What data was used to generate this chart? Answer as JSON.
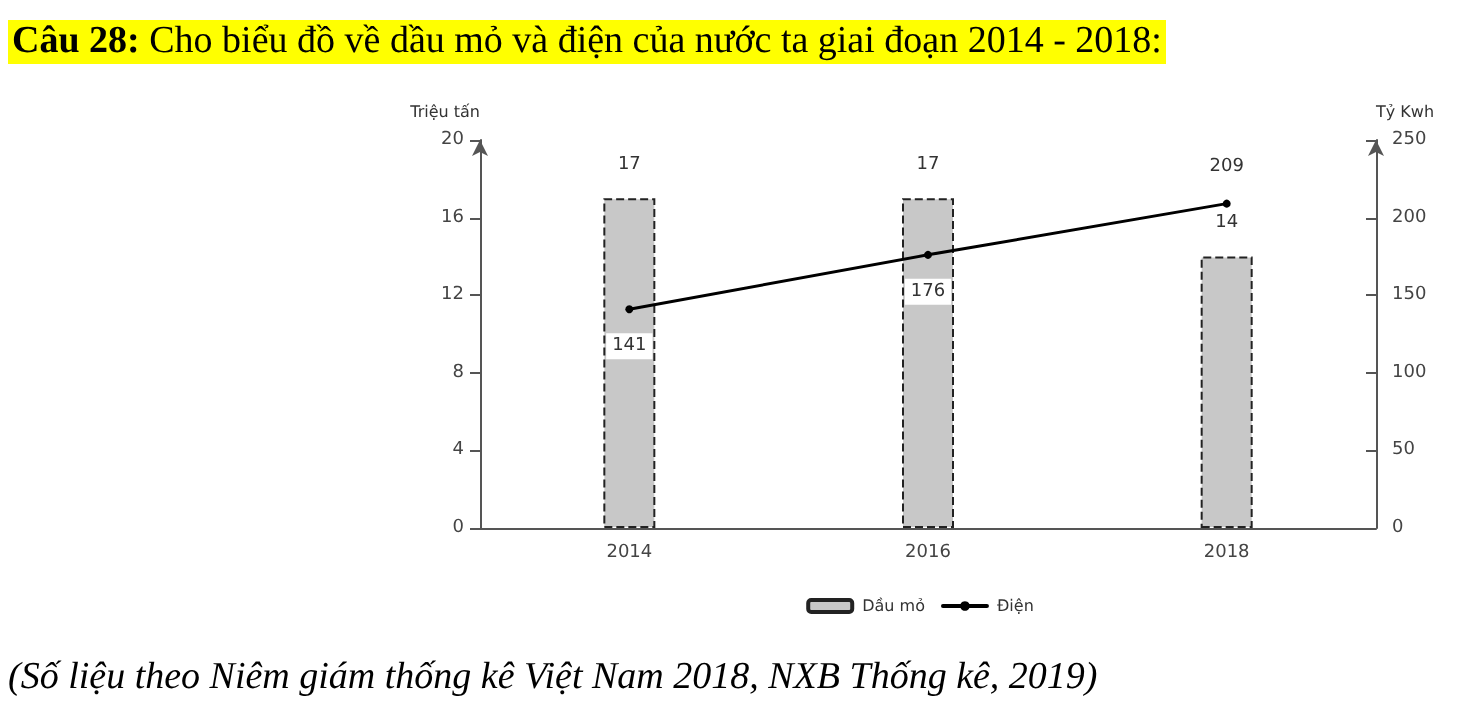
{
  "chart_data": {
    "type": "bar",
    "title": "Câu 28: Cho biểu đồ về dầu mỏ và điện của nước ta giai đoạn 2014 - 2018:",
    "categories": [
      "2014",
      "2016",
      "2018"
    ],
    "series": [
      {
        "name": "Dầu mỏ",
        "color": "#c8c8c8",
        "values": [
          17,
          17,
          14
        ]
      },
      {
        "name": "Điện",
        "type": "line",
        "axis": "y2",
        "color": "#000000",
        "values": [
          141,
          176,
          209
        ]
      }
    ],
    "ylabel": "Triệu tấn",
    "y2label": "Tỷ Kwh",
    "ylim": [
      0,
      20
    ],
    "yticks": [
      0,
      4,
      8,
      12,
      16,
      20
    ],
    "y2lim": [
      0,
      250
    ],
    "y2ticks": [
      0,
      50,
      100,
      150,
      200,
      250
    ],
    "data_labels": true,
    "grid": false,
    "legend": "bottom",
    "marker": "circle",
    "annotations": [
      "(Số liệu theo Niêm giám thống kê Việt Nam 2018, NXB Thống kê, 2019)"
    ]
  }
}
